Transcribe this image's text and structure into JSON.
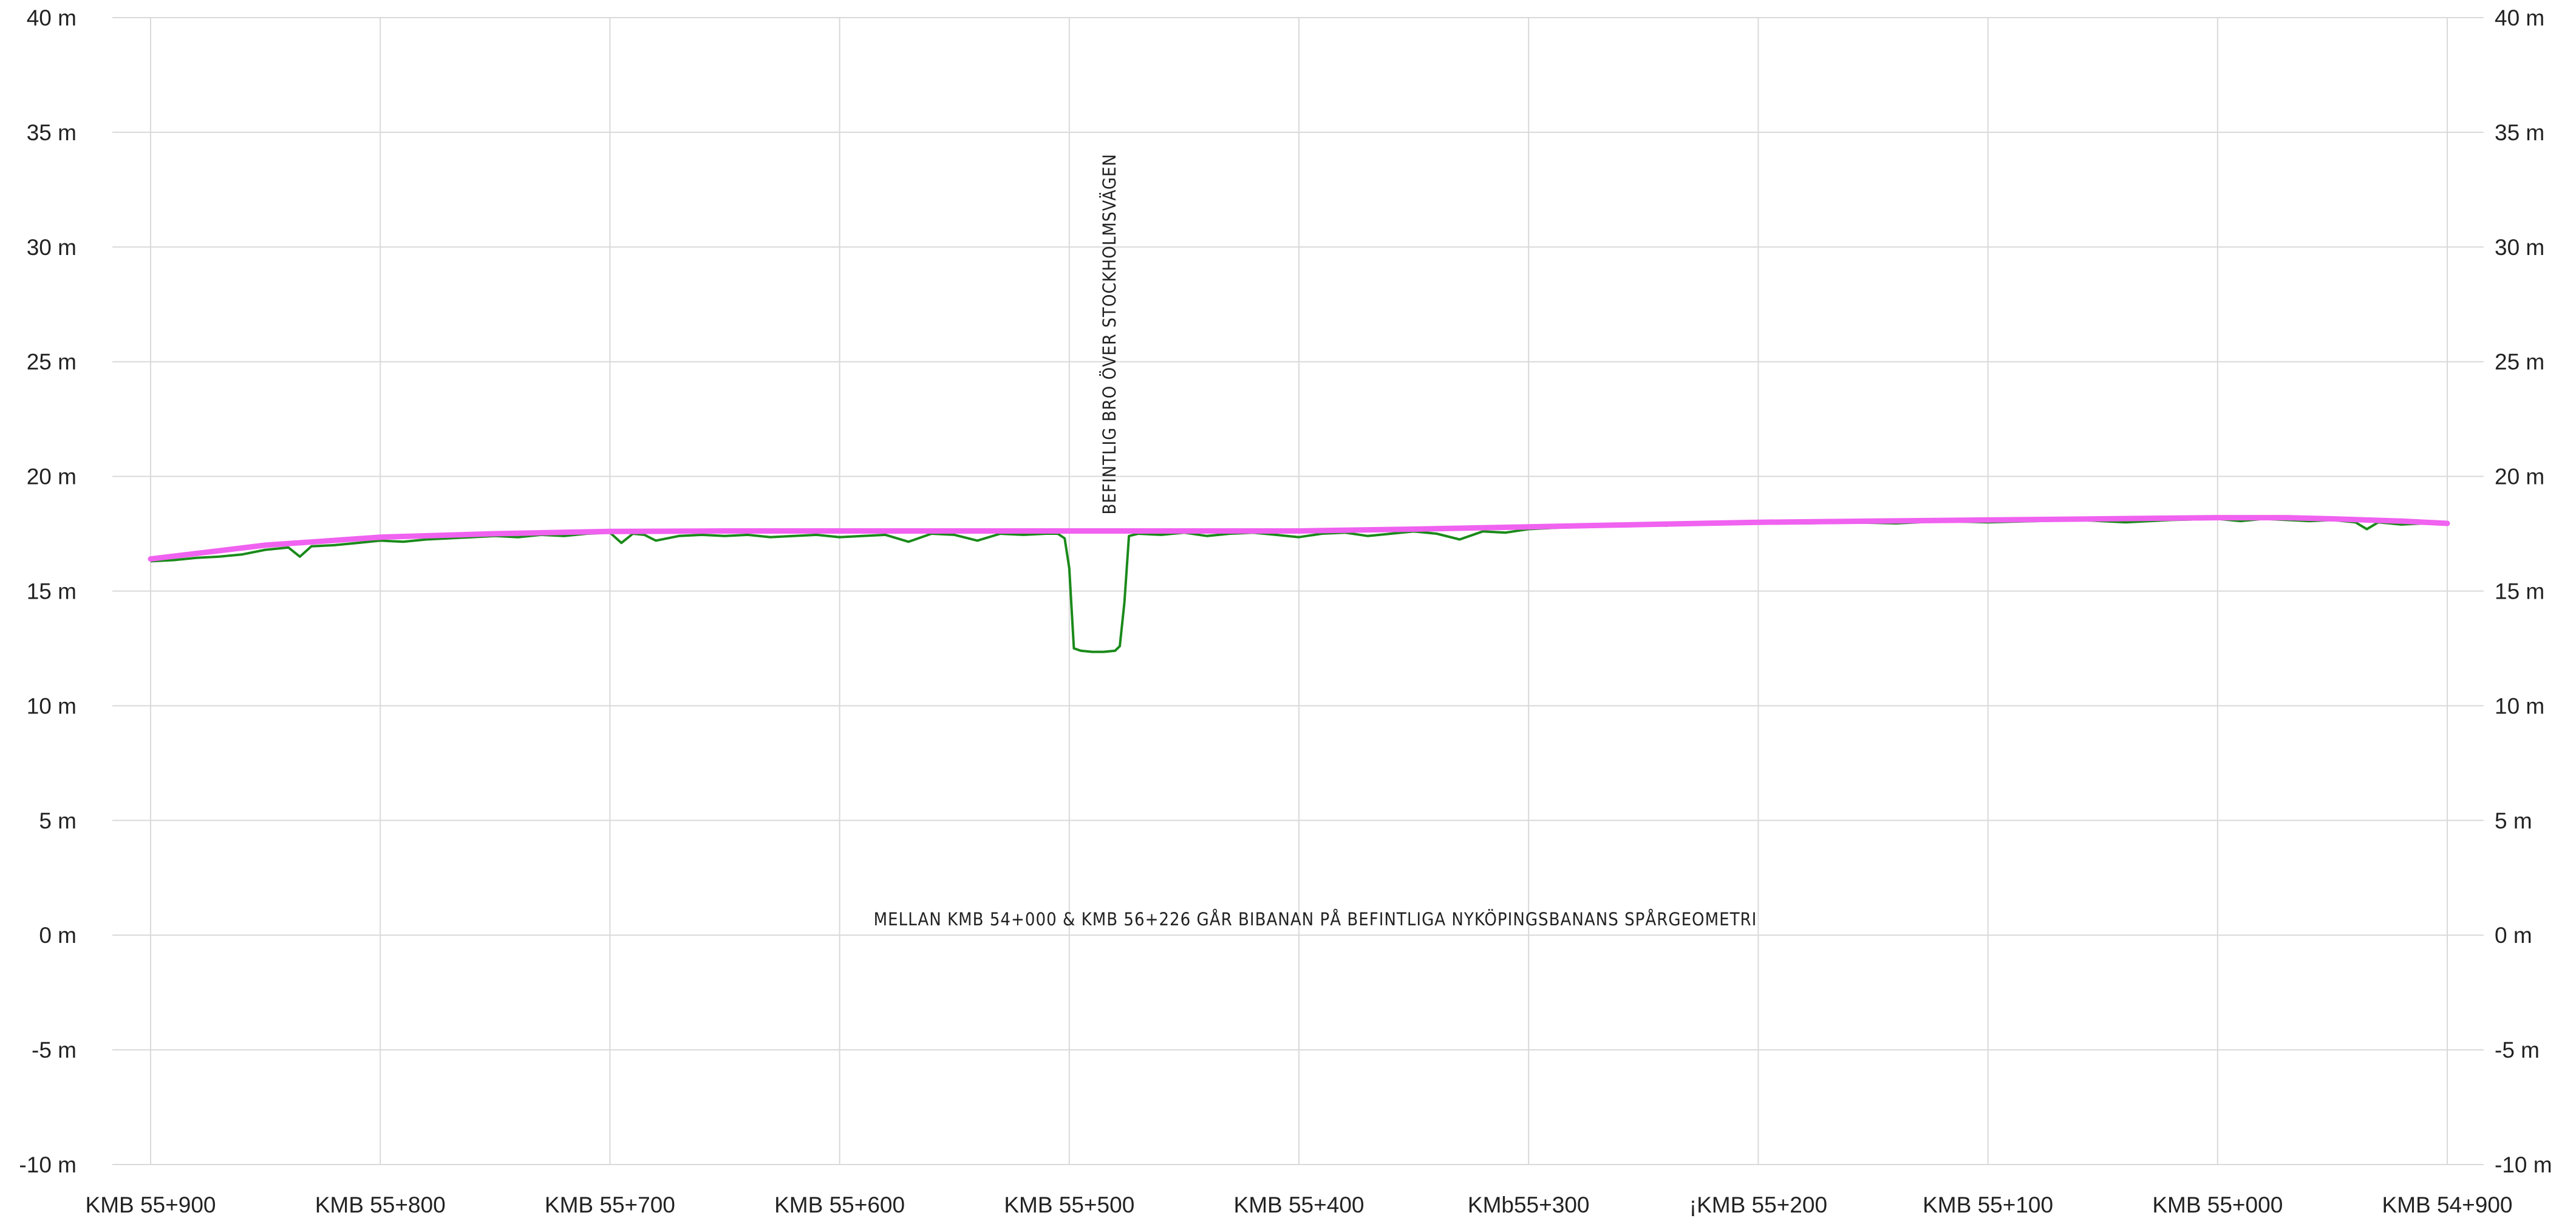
{
  "chart_data": {
    "type": "line",
    "title": "",
    "xlabel": "",
    "ylabel": "",
    "y_unit": "m",
    "ylim": [
      -10,
      40
    ],
    "y_ticks": [
      -10,
      -5,
      0,
      5,
      10,
      15,
      20,
      25,
      30,
      35,
      40
    ],
    "y_tick_labels": [
      "-10 m",
      "-5 m",
      "0 m",
      "5 m",
      "10 m",
      "15 m",
      "20 m",
      "25 m",
      "30 m",
      "35 m",
      "40 m"
    ],
    "x_reversed": true,
    "xlim": [
      55900,
      54900
    ],
    "x_ticks": [
      55900,
      55800,
      55700,
      55600,
      55500,
      55400,
      55300,
      55200,
      55100,
      55000,
      54900
    ],
    "x_tick_labels": [
      "KMB 55+900",
      "KMB 55+800",
      "KMB 55+700",
      "KMB 55+600",
      "KMB 55+500",
      "KMB 55+400",
      "KMb55+300",
      "¡KMB 55+200",
      "KMB 55+100",
      "KMB 55+000",
      "KMB 54+900"
    ],
    "grid": true,
    "series": [
      {
        "color": "#f062f0",
        "style": "thick",
        "x": [
          55900,
          55850,
          55800,
          55750,
          55700,
          55650,
          55600,
          55550,
          55500,
          55450,
          55400,
          55350,
          55300,
          55250,
          55200,
          55150,
          55100,
          55050,
          55000,
          54970,
          54950,
          54920,
          54900
        ],
        "y": [
          16.4,
          17.0,
          17.35,
          17.5,
          17.6,
          17.62,
          17.62,
          17.62,
          17.62,
          17.62,
          17.62,
          17.7,
          17.8,
          17.9,
          18.0,
          18.05,
          18.1,
          18.15,
          18.2,
          18.2,
          18.15,
          18.05,
          17.95
        ]
      },
      {
        "color": "#1a8a1a",
        "style": "thin",
        "x": [
          55900,
          55890,
          55880,
          55870,
          55860,
          55850,
          55840,
          55835,
          55830,
          55820,
          55810,
          55800,
          55790,
          55780,
          55770,
          55760,
          55750,
          55740,
          55730,
          55720,
          55710,
          55700,
          55695,
          55690,
          55685,
          55680,
          55670,
          55660,
          55650,
          55640,
          55630,
          55620,
          55610,
          55600,
          55590,
          55580,
          55570,
          55560,
          55550,
          55540,
          55530,
          55520,
          55510,
          55505,
          55502,
          55500,
          55498,
          55495,
          55490,
          55485,
          55480,
          55478,
          55476,
          55474,
          55470,
          55460,
          55450,
          55440,
          55430,
          55420,
          55410,
          55400,
          55390,
          55380,
          55370,
          55360,
          55350,
          55340,
          55330,
          55320,
          55310,
          55300,
          55290,
          55280,
          55270,
          55260,
          55250,
          55240,
          55230,
          55220,
          55210,
          55200,
          55180,
          55160,
          55140,
          55120,
          55100,
          55080,
          55060,
          55040,
          55020,
          55000,
          54990,
          54980,
          54970,
          54960,
          54950,
          54940,
          54935,
          54930,
          54920,
          54910,
          54900
        ],
        "y": [
          16.3,
          16.35,
          16.45,
          16.5,
          16.6,
          16.8,
          16.9,
          16.5,
          16.95,
          17.0,
          17.1,
          17.2,
          17.15,
          17.25,
          17.3,
          17.35,
          17.4,
          17.35,
          17.45,
          17.4,
          17.5,
          17.55,
          17.1,
          17.5,
          17.45,
          17.2,
          17.4,
          17.45,
          17.4,
          17.45,
          17.35,
          17.4,
          17.45,
          17.35,
          17.4,
          17.45,
          17.15,
          17.5,
          17.45,
          17.2,
          17.5,
          17.45,
          17.5,
          17.5,
          17.3,
          16.0,
          12.5,
          12.4,
          12.35,
          12.35,
          12.4,
          12.6,
          14.5,
          17.4,
          17.5,
          17.45,
          17.55,
          17.4,
          17.5,
          17.55,
          17.45,
          17.35,
          17.5,
          17.55,
          17.4,
          17.5,
          17.6,
          17.5,
          17.25,
          17.6,
          17.55,
          17.7,
          17.75,
          17.8,
          17.85,
          17.85,
          17.9,
          17.85,
          17.95,
          17.9,
          17.95,
          18.0,
          17.95,
          18.0,
          17.95,
          18.05,
          18.0,
          18.05,
          18.1,
          18.0,
          18.1,
          18.15,
          18.05,
          18.15,
          18.1,
          18.05,
          18.1,
          18.0,
          17.7,
          18.0,
          17.9,
          17.95,
          17.9
        ]
      }
    ],
    "annotations": [
      {
        "text": "BEFINTLIG BRO ÖVER STOCKHOLMSVÄGEN",
        "orientation": "vertical"
      },
      {
        "text": "MELLAN KMB 54+000 & KMB 56+226 GÅR BIBANAN PÅ BEFINTLIGA NYKÖPINGSBANANS SPÅRGEOMETRI",
        "orientation": "horizontal"
      }
    ]
  }
}
